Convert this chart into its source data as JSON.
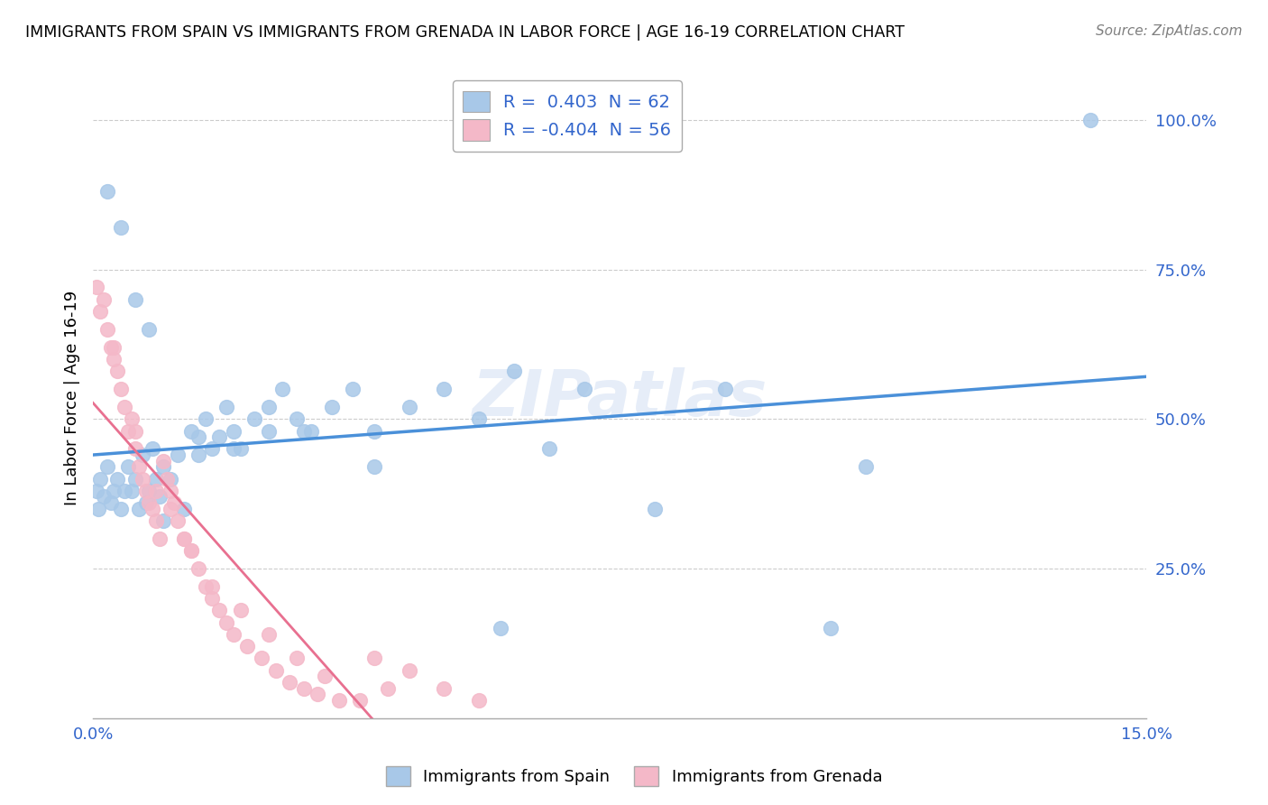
{
  "title": "IMMIGRANTS FROM SPAIN VS IMMIGRANTS FROM GRENADA IN LABOR FORCE | AGE 16-19 CORRELATION CHART",
  "source": "Source: ZipAtlas.com",
  "ylabel": "In Labor Force | Age 16-19",
  "spain_color": "#a8c8e8",
  "grenada_color": "#f4b8c8",
  "spain_line_color": "#4a90d9",
  "grenada_line_color": "#e87090",
  "watermark": "ZIPatlas",
  "r_spain": 0.403,
  "n_spain": 62,
  "r_grenada": -0.404,
  "n_grenada": 56,
  "xlim": [
    0.0,
    15.0
  ],
  "ylim": [
    0.0,
    107.0
  ],
  "spain_scatter_x": [
    0.05,
    0.08,
    0.1,
    0.15,
    0.2,
    0.25,
    0.3,
    0.35,
    0.4,
    0.45,
    0.5,
    0.55,
    0.6,
    0.65,
    0.7,
    0.75,
    0.8,
    0.85,
    0.9,
    0.95,
    1.0,
    1.1,
    1.2,
    1.3,
    1.4,
    1.5,
    1.6,
    1.7,
    1.8,
    1.9,
    2.0,
    2.1,
    2.3,
    2.5,
    2.7,
    2.9,
    3.1,
    3.4,
    3.7,
    4.0,
    4.5,
    5.0,
    5.5,
    6.0,
    6.5,
    7.0,
    8.0,
    9.0,
    10.5,
    11.0,
    0.2,
    0.4,
    0.6,
    0.8,
    1.0,
    1.5,
    2.0,
    2.5,
    3.0,
    4.0,
    5.8,
    14.2
  ],
  "spain_scatter_y": [
    38,
    35,
    40,
    37,
    42,
    36,
    38,
    40,
    35,
    38,
    42,
    38,
    40,
    35,
    44,
    36,
    38,
    45,
    40,
    37,
    42,
    40,
    44,
    35,
    48,
    44,
    50,
    45,
    47,
    52,
    48,
    45,
    50,
    48,
    55,
    50,
    48,
    52,
    55,
    48,
    52,
    55,
    50,
    58,
    45,
    55,
    35,
    55,
    15,
    42,
    88,
    82,
    70,
    65,
    33,
    47,
    45,
    52,
    48,
    42,
    15,
    100
  ],
  "grenada_scatter_x": [
    0.05,
    0.1,
    0.15,
    0.2,
    0.25,
    0.3,
    0.35,
    0.4,
    0.45,
    0.5,
    0.55,
    0.6,
    0.65,
    0.7,
    0.75,
    0.8,
    0.85,
    0.9,
    0.95,
    1.0,
    1.05,
    1.1,
    1.15,
    1.2,
    1.3,
    1.4,
    1.5,
    1.6,
    1.7,
    1.8,
    1.9,
    2.0,
    2.2,
    2.4,
    2.6,
    2.8,
    3.0,
    3.2,
    3.5,
    3.8,
    4.0,
    4.5,
    5.0,
    0.3,
    0.6,
    0.9,
    1.1,
    1.4,
    1.7,
    2.1,
    2.5,
    2.9,
    3.3,
    4.2,
    5.5,
    1.3
  ],
  "grenada_scatter_y": [
    72,
    68,
    70,
    65,
    62,
    60,
    58,
    55,
    52,
    48,
    50,
    45,
    42,
    40,
    38,
    36,
    35,
    33,
    30,
    43,
    40,
    38,
    36,
    33,
    30,
    28,
    25,
    22,
    20,
    18,
    16,
    14,
    12,
    10,
    8,
    6,
    5,
    4,
    3,
    3,
    10,
    8,
    5,
    62,
    48,
    38,
    35,
    28,
    22,
    18,
    14,
    10,
    7,
    5,
    3,
    30
  ]
}
